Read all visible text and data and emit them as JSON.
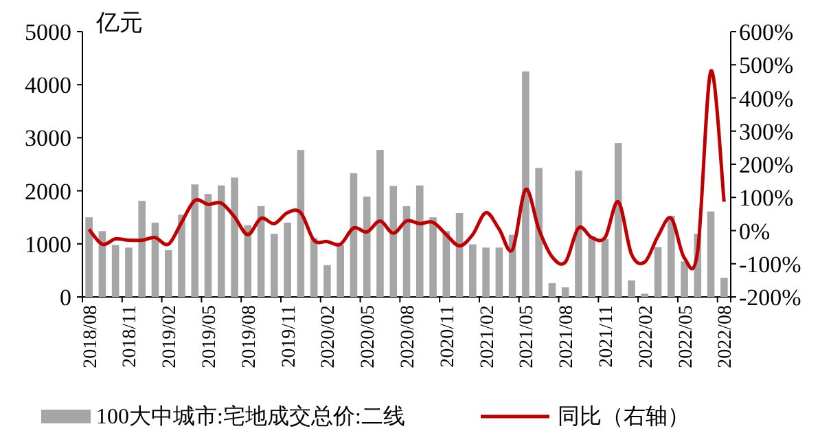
{
  "chart_data": {
    "type": "bar",
    "ylabel": "亿元",
    "categories": [
      "2018/08",
      null,
      null,
      "2018/11",
      null,
      null,
      "2019/02",
      null,
      null,
      "2019/05",
      null,
      null,
      "2019/08",
      null,
      null,
      "2019/11",
      null,
      null,
      "2020/02",
      null,
      null,
      "2020/05",
      null,
      null,
      "2020/08",
      null,
      null,
      "2020/11",
      null,
      null,
      "2021/02",
      null,
      null,
      "2021/05",
      null,
      null,
      "2021/08",
      null,
      null,
      "2021/11",
      null,
      null,
      "2022/02",
      null,
      null,
      "2022/05",
      null,
      null,
      "2022/08"
    ],
    "series": [
      {
        "name": "100大中城市:宅地成交总价:二线",
        "color": "#a6a6a6",
        "values": [
          1500,
          1240,
          980,
          930,
          1810,
          1400,
          880,
          1550,
          2120,
          1940,
          2100,
          2250,
          1350,
          1710,
          1190,
          1400,
          2770,
          1110,
          600,
          980,
          2330,
          1890,
          2770,
          2090,
          1710,
          2100,
          1500,
          1240,
          1580,
          990,
          930,
          930,
          1170,
          4250,
          2430,
          260,
          180,
          2380,
          1140,
          1090,
          2900,
          310,
          60,
          940,
          1530,
          670,
          1190,
          1610,
          360
        ]
      },
      {
        "name": "同比（右轴）",
        "type": "line",
        "axis": "y2",
        "color": "#c00000",
        "values": [
          4,
          -41,
          -25,
          -29,
          -29,
          -21,
          -41,
          25,
          91,
          79,
          83,
          41,
          -12,
          37,
          21,
          54,
          54,
          -29,
          -33,
          -41,
          8,
          -4,
          29,
          -8,
          29,
          21,
          25,
          -12,
          -46,
          -12,
          54,
          4,
          -58,
          124,
          4,
          -79,
          -95,
          8,
          -21,
          -21,
          87,
          -71,
          -95,
          -17,
          37,
          -83,
          -62,
          481,
          87
        ]
      }
    ],
    "ylim": [
      0,
      5000
    ],
    "yticks": [
      0,
      1000,
      2000,
      3000,
      4000,
      5000
    ],
    "y2lim": [
      -200,
      600
    ],
    "y2ticks": [
      {
        "value": -200,
        "label": "-200%"
      },
      {
        "value": -100,
        "label": "-100%"
      },
      {
        "value": 0,
        "label": "0%"
      },
      {
        "value": 100,
        "label": "100%"
      },
      {
        "value": 200,
        "label": "200%"
      },
      {
        "value": 300,
        "label": "300%"
      },
      {
        "value": 400,
        "label": "400%"
      },
      {
        "value": 500,
        "label": "500%"
      },
      {
        "value": 600,
        "label": "600%"
      }
    ],
    "grid": false,
    "legend": "bottom",
    "marker": "none",
    "line_style": "solid"
  }
}
